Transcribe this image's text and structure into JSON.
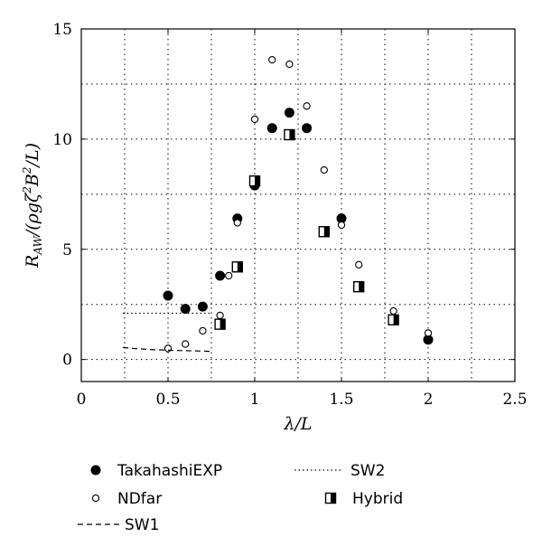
{
  "chart_data": {
    "type": "scatter",
    "xlabel": "λ/L",
    "ylabel": "R_AW/(ρgζ²B²/L)",
    "xlim": [
      0,
      2.5
    ],
    "ylim": [
      -1,
      15
    ],
    "xticks": [
      0,
      0.5,
      1,
      1.5,
      2,
      2.5
    ],
    "xtick_labels": [
      "0",
      "0.5",
      "1",
      "1.5",
      "2",
      "2.5"
    ],
    "yticks": [
      0,
      5,
      10,
      15
    ],
    "ytick_labels": [
      "0",
      "5",
      "10",
      "15"
    ],
    "grid": "dotted",
    "legend_position": "bottom",
    "series": [
      {
        "name": "TakahashiEXP",
        "marker": "filled-circle",
        "x": [
          0.5,
          0.6,
          0.7,
          0.8,
          0.9,
          1.0,
          1.1,
          1.2,
          1.3,
          1.5,
          2.0
        ],
        "y": [
          2.9,
          2.3,
          2.4,
          3.8,
          6.4,
          7.9,
          10.5,
          11.2,
          10.5,
          6.4,
          0.9
        ]
      },
      {
        "name": "NDfar",
        "marker": "open-circle",
        "x": [
          0.5,
          0.6,
          0.7,
          0.8,
          0.85,
          0.9,
          1.0,
          1.1,
          1.2,
          1.3,
          1.4,
          1.5,
          1.6,
          1.8,
          2.0
        ],
        "y": [
          0.5,
          0.7,
          1.3,
          2.0,
          3.8,
          6.2,
          10.9,
          13.6,
          13.4,
          11.5,
          8.6,
          6.1,
          4.3,
          2.2,
          1.2
        ]
      },
      {
        "name": "Hybrid",
        "marker": "half-filled-square",
        "x": [
          0.8,
          0.9,
          1.0,
          1.2,
          1.4,
          1.6,
          1.8
        ],
        "y": [
          1.6,
          4.2,
          8.1,
          10.2,
          5.8,
          3.3,
          1.8
        ]
      },
      {
        "name": "SW1",
        "marker": "dashed-line",
        "x": [
          0.24,
          0.3,
          0.4,
          0.5,
          0.6,
          0.7,
          0.74
        ],
        "y": [
          0.55,
          0.5,
          0.45,
          0.42,
          0.4,
          0.38,
          0.37
        ]
      },
      {
        "name": "SW2",
        "marker": "dotted-line",
        "x": [
          0.24,
          0.3,
          0.4,
          0.5,
          0.6,
          0.7,
          0.74
        ],
        "y": [
          2.1,
          2.1,
          2.1,
          2.1,
          2.1,
          2.1,
          2.1
        ]
      }
    ],
    "legend": [
      {
        "label": "TakahashiEXP",
        "series": "TakahashiEXP"
      },
      {
        "label": "SW2",
        "series": "SW2"
      },
      {
        "label": "NDfar",
        "series": "NDfar"
      },
      {
        "label": "Hybrid",
        "series": "Hybrid"
      },
      {
        "label": "SW1",
        "series": "SW1"
      }
    ],
    "colors": {
      "marker": "#000000",
      "grid": "#000000",
      "background": "#ffffff"
    }
  }
}
